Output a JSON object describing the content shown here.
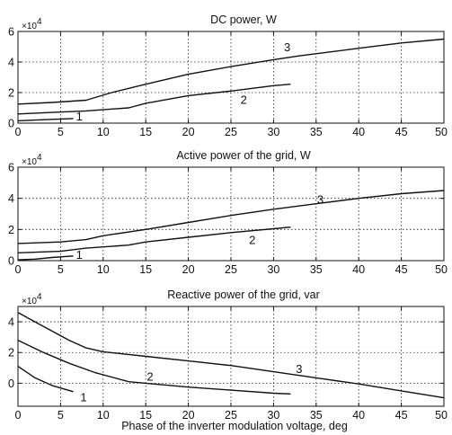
{
  "chart_data": [
    {
      "type": "line",
      "title": "DC power, W",
      "multiplier": "×10",
      "multiplier_exp": "4",
      "xlim": [
        0,
        50
      ],
      "ylim": [
        0,
        6
      ],
      "xticks": [
        0,
        5,
        10,
        15,
        20,
        25,
        30,
        35,
        40,
        45,
        50
      ],
      "yticks": [
        0,
        2,
        4,
        6
      ],
      "grid": true,
      "series": [
        {
          "name": "1",
          "x": [
            0,
            2,
            4,
            6.5
          ],
          "y": [
            0.15,
            0.2,
            0.25,
            0.3
          ],
          "label_at": [
            7.2,
            0.4
          ]
        },
        {
          "name": "2",
          "x": [
            0,
            4,
            8,
            13,
            15,
            20,
            25,
            30,
            32
          ],
          "y": [
            0.6,
            0.7,
            0.8,
            1.0,
            1.3,
            1.8,
            2.1,
            2.45,
            2.55
          ],
          "label_at": [
            26.5,
            1.5
          ]
        },
        {
          "name": "3",
          "x": [
            0,
            4,
            8,
            11,
            15,
            20,
            25,
            30,
            33,
            40,
            45,
            50
          ],
          "y": [
            1.25,
            1.35,
            1.5,
            2.0,
            2.55,
            3.2,
            3.7,
            4.15,
            4.4,
            4.9,
            5.25,
            5.5
          ],
          "label_at": [
            31.6,
            4.95
          ]
        }
      ]
    },
    {
      "type": "line",
      "title": "Active power of the grid, W",
      "multiplier": "×10",
      "multiplier_exp": "4",
      "xlim": [
        0,
        50
      ],
      "ylim": [
        0,
        6
      ],
      "xticks": [
        0,
        5,
        10,
        15,
        20,
        25,
        30,
        35,
        40,
        45,
        50
      ],
      "yticks": [
        0,
        2,
        4,
        6
      ],
      "grid": true,
      "series": [
        {
          "name": "1",
          "x": [
            0,
            2,
            4,
            6.5
          ],
          "y": [
            0.05,
            0.1,
            0.2,
            0.3
          ],
          "label_at": [
            7.2,
            0.35
          ]
        },
        {
          "name": "2",
          "x": [
            0,
            5,
            8,
            13,
            15,
            20,
            25,
            30,
            32
          ],
          "y": [
            0.5,
            0.6,
            0.8,
            1.0,
            1.2,
            1.5,
            1.8,
            2.05,
            2.15
          ],
          "label_at": [
            27.5,
            1.3
          ]
        },
        {
          "name": "3",
          "x": [
            0,
            5,
            8,
            10,
            15,
            20,
            25,
            30,
            35,
            40,
            45,
            50
          ],
          "y": [
            1.1,
            1.2,
            1.35,
            1.6,
            2.0,
            2.45,
            2.9,
            3.3,
            3.65,
            4.0,
            4.3,
            4.5
          ],
          "label_at": [
            35.5,
            3.9
          ]
        }
      ]
    },
    {
      "type": "line",
      "title": "Reactive power of the grid, var",
      "multiplier": "×10",
      "multiplier_exp": "4",
      "xlabel": "Phase of the inverter modulation voltage, deg",
      "xlim": [
        0,
        50
      ],
      "ylim": [
        -1.5,
        5
      ],
      "xticks": [
        0,
        5,
        10,
        15,
        20,
        25,
        30,
        35,
        40,
        45,
        50
      ],
      "yticks": [
        0,
        2,
        4
      ],
      "grid": true,
      "series": [
        {
          "name": "1",
          "x": [
            0,
            2,
            4,
            6.5
          ],
          "y": [
            1.1,
            0.35,
            -0.15,
            -0.55
          ],
          "label_at": [
            7.7,
            -0.95
          ]
        },
        {
          "name": "2",
          "x": [
            0,
            3,
            6,
            9,
            13,
            15,
            20,
            25,
            30,
            32
          ],
          "y": [
            2.8,
            2.0,
            1.3,
            0.7,
            0.1,
            0.0,
            -0.25,
            -0.45,
            -0.65,
            -0.7
          ],
          "label_at": [
            15.5,
            0.4
          ]
        },
        {
          "name": "3",
          "x": [
            0,
            3,
            6,
            8,
            10,
            15,
            20,
            25,
            30,
            35,
            40,
            45,
            50
          ],
          "y": [
            4.6,
            3.7,
            2.8,
            2.3,
            2.05,
            1.75,
            1.45,
            1.15,
            0.75,
            0.35,
            -0.05,
            -0.5,
            -0.95
          ],
          "label_at": [
            33.0,
            0.9
          ]
        }
      ]
    }
  ]
}
